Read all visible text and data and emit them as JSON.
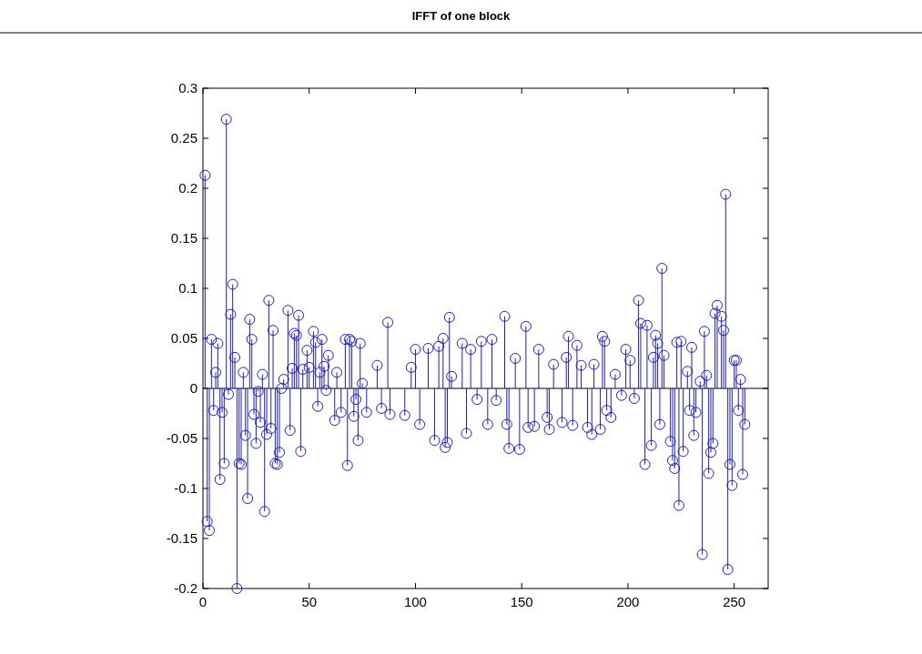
{
  "chart_data": {
    "type": "lollipop",
    "title": "IFFT of one block",
    "marker": "circle",
    "color": "#1c1cc8",
    "x": [
      1,
      2,
      3,
      4,
      5,
      6,
      7,
      8,
      9,
      10,
      11,
      12,
      13,
      14,
      15,
      16,
      17,
      18,
      19,
      20,
      21,
      22,
      23,
      24,
      25,
      26,
      27,
      28,
      29,
      30,
      31,
      32,
      33,
      34,
      35,
      36,
      37,
      38,
      40,
      41,
      42,
      43,
      44,
      45,
      46,
      47,
      49,
      50,
      52,
      53,
      54,
      55,
      56,
      57,
      58,
      59,
      62,
      63,
      65,
      67,
      68,
      69,
      70,
      71,
      72,
      73,
      74,
      75,
      77,
      82,
      84,
      87,
      88,
      95,
      98,
      100,
      102,
      106,
      109,
      111,
      113,
      114,
      115,
      116,
      117,
      122,
      124,
      126,
      129,
      131,
      134,
      136,
      138,
      142,
      143,
      144,
      147,
      149,
      152,
      153,
      156,
      158,
      162,
      163,
      165,
      169,
      171,
      172,
      174,
      176,
      178,
      181,
      183,
      184,
      187,
      188,
      189,
      190,
      192,
      194,
      197,
      199,
      201,
      203,
      205,
      206,
      208,
      209,
      211,
      212,
      213,
      214,
      215,
      216,
      217,
      220,
      221,
      222,
      223,
      224,
      225,
      226,
      228,
      229,
      230,
      231,
      232,
      234,
      235,
      236,
      237,
      238,
      239,
      240,
      241,
      242,
      244,
      245,
      246,
      247,
      248,
      249,
      250,
      251,
      252,
      253,
      254,
      255
    ],
    "values": [
      0.213,
      -0.133,
      -0.142,
      0.049,
      -0.022,
      0.016,
      0.045,
      -0.091,
      -0.024,
      -0.075,
      0.269,
      -0.006,
      0.074,
      0.104,
      0.031,
      -0.2,
      -0.075,
      -0.076,
      0.016,
      -0.047,
      -0.11,
      0.069,
      0.049,
      -0.026,
      -0.055,
      -0.003,
      -0.034,
      0.014,
      -0.123,
      -0.046,
      0.088,
      -0.04,
      0.058,
      -0.075,
      -0.076,
      -0.064,
      0,
      0.009,
      0.078,
      -0.042,
      0.02,
      0.055,
      0.053,
      0.073,
      -0.063,
      0.019,
      0.038,
      0.021,
      0.057,
      0.046,
      -0.018,
      0.016,
      0.049,
      0.022,
      -0.002,
      0.033,
      -0.032,
      0.016,
      -0.024,
      0.049,
      -0.077,
      0.049,
      0.047,
      -0.028,
      -0.011,
      -0.052,
      0.045,
      0.005,
      -0.024,
      0.023,
      -0.02,
      0.066,
      -0.026,
      -0.027,
      0.021,
      0.039,
      -0.036,
      0.04,
      -0.052,
      0.042,
      0.05,
      -0.059,
      -0.054,
      0.071,
      0.012,
      0.045,
      -0.045,
      0.039,
      -0.011,
      0.047,
      -0.036,
      0.049,
      -0.012,
      0.072,
      -0.036,
      -0.06,
      0.03,
      -0.061,
      0.062,
      -0.039,
      -0.038,
      0.039,
      -0.029,
      -0.041,
      0.024,
      -0.034,
      0.031,
      0.052,
      -0.037,
      0.043,
      0.023,
      -0.039,
      -0.046,
      0.024,
      -0.041,
      0.052,
      0.047,
      -0.022,
      -0.029,
      0.014,
      -0.007,
      0.039,
      0.028,
      -0.01,
      0.088,
      0.065,
      -0.076,
      0.063,
      -0.057,
      0.031,
      0.053,
      0.045,
      -0.036,
      0.12,
      0.033,
      -0.053,
      -0.072,
      -0.08,
      0.046,
      -0.117,
      0.047,
      -0.063,
      0.017,
      -0.022,
      0.041,
      -0.047,
      -0.024,
      0.007,
      -0.166,
      0.057,
      0.013,
      -0.085,
      -0.064,
      -0.055,
      0.075,
      0.083,
      0.072,
      0.058,
      0.194,
      -0.181,
      -0.076,
      -0.097,
      0.028,
      0.028,
      -0.022,
      0.009,
      -0.086,
      -0.036
    ],
    "xlim": [
      0,
      266
    ],
    "ylim": [
      -0.2,
      0.3
    ],
    "xticks": [
      0,
      50,
      100,
      150,
      200,
      250
    ],
    "yticks": [
      -0.2,
      -0.15,
      -0.1,
      -0.05,
      0,
      0.05,
      0.1,
      0.15,
      0.2,
      0.25,
      0.3
    ]
  }
}
